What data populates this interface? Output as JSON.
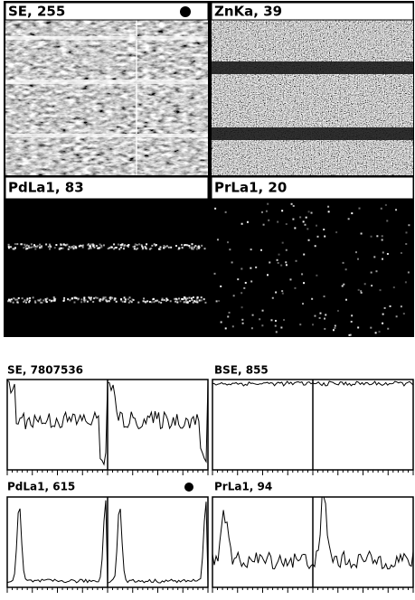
{
  "maps": [
    {
      "label": "SE, 255"
    },
    {
      "label": "ZnKa, 39"
    },
    {
      "label": "PdLa1, 83"
    },
    {
      "label": "PrLa1, 20"
    }
  ],
  "profiles": [
    {
      "label": "SE, 7807536"
    },
    {
      "label": "BSE, 855"
    },
    {
      "label": "PdLa1, 615"
    },
    {
      "label": "PrLa1, 94"
    }
  ]
}
